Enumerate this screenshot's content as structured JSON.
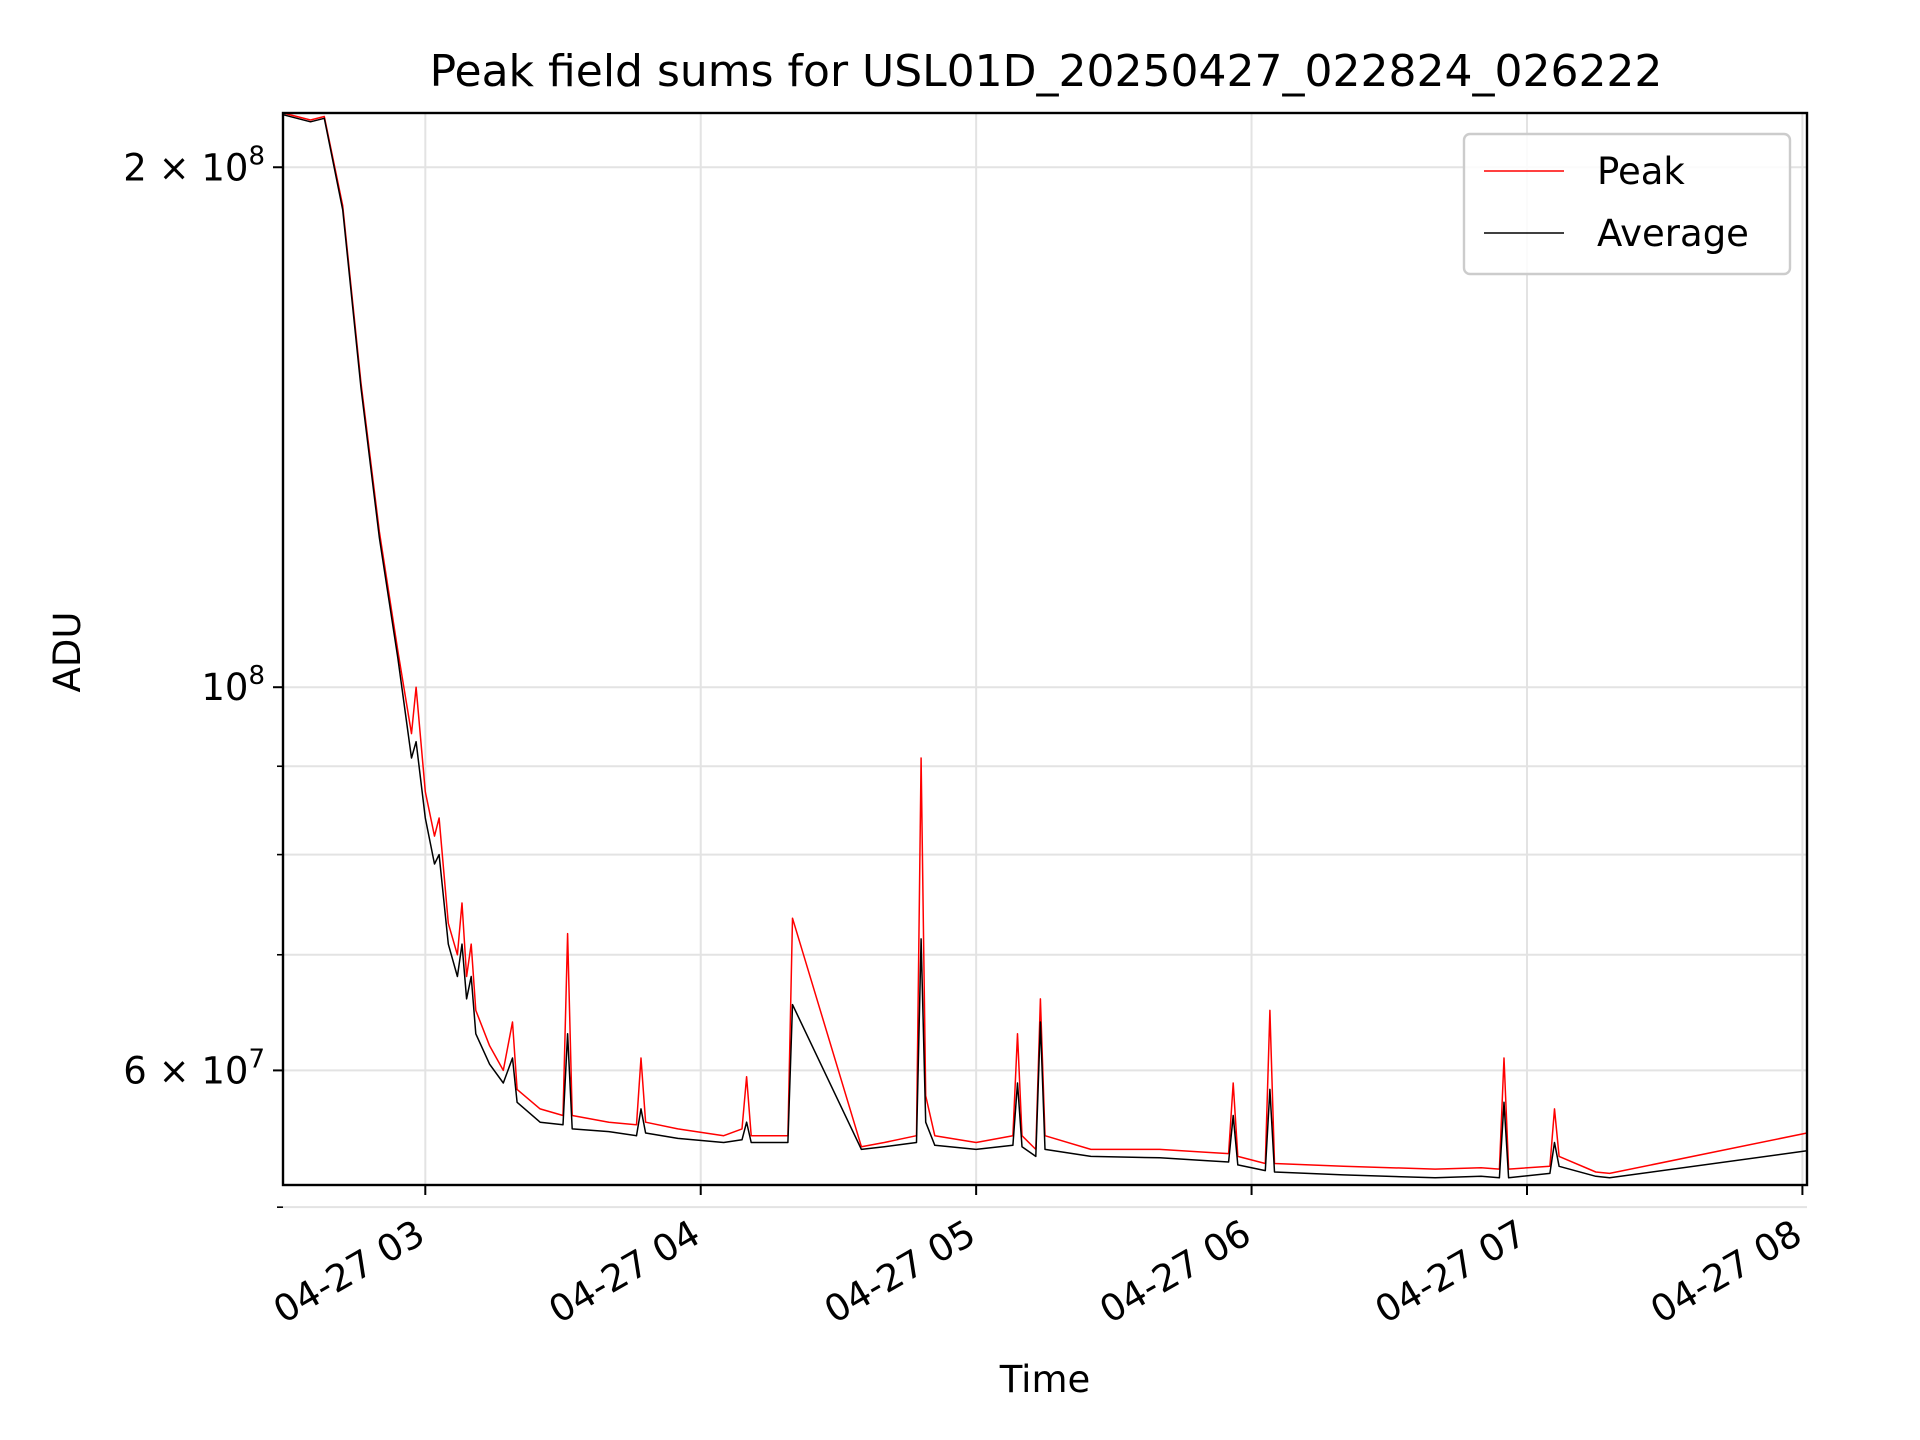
{
  "chart_data": {
    "type": "line",
    "title": "Peak field sums for USL01D_20250427_022824_026222",
    "xlabel": "Time",
    "ylabel": "ADU",
    "yscale": "log",
    "xlim": [
      "2025-04-27 02:29",
      "2025-04-27 08:01"
    ],
    "ylim": [
      51500000,
      215000000
    ],
    "grid": true,
    "legend_position": "top-right",
    "x_ticks": [
      "04-27 03",
      "04-27 04",
      "04-27 05",
      "04-27 06",
      "04-27 07",
      "04-27 08"
    ],
    "x_tick_times": [
      "2025-04-27 03:00",
      "2025-04-27 04:00",
      "2025-04-27 05:00",
      "2025-04-27 06:00",
      "2025-04-27 07:00",
      "2025-04-27 08:00"
    ],
    "y_ticks": [
      {
        "value": 60000000,
        "mantissa": "6",
        "exponent": "7"
      },
      {
        "value": 100000000,
        "mantissa": "",
        "exponent": "8"
      },
      {
        "value": 200000000,
        "mantissa": "2",
        "exponent": "8"
      }
    ],
    "y_minor_ticks": [
      50000000,
      70000000,
      80000000,
      90000000
    ],
    "series": [
      {
        "name": "Peak",
        "color": "#ff0000",
        "points": [
          [
            "2025-04-27 02:29",
            215000000
          ],
          [
            "2025-04-27 02:35",
            213000000
          ],
          [
            "2025-04-27 02:38",
            214000000
          ],
          [
            "2025-04-27 02:42",
            190000000
          ],
          [
            "2025-04-27 02:46",
            150000000
          ],
          [
            "2025-04-27 02:50",
            123000000
          ],
          [
            "2025-04-27 02:54",
            105000000
          ],
          [
            "2025-04-27 02:57",
            94000000
          ],
          [
            "2025-04-27 02:58",
            100000000
          ],
          [
            "2025-04-27 03:00",
            87000000
          ],
          [
            "2025-04-27 03:02",
            82000000
          ],
          [
            "2025-04-27 03:03",
            84000000
          ],
          [
            "2025-04-27 03:05",
            73000000
          ],
          [
            "2025-04-27 03:07",
            70000000
          ],
          [
            "2025-04-27 03:08",
            75000000
          ],
          [
            "2025-04-27 03:09",
            68000000
          ],
          [
            "2025-04-27 03:10",
            71000000
          ],
          [
            "2025-04-27 03:11",
            65000000
          ],
          [
            "2025-04-27 03:14",
            62000000
          ],
          [
            "2025-04-27 03:17",
            60000000
          ],
          [
            "2025-04-27 03:19",
            64000000
          ],
          [
            "2025-04-27 03:20",
            58500000
          ],
          [
            "2025-04-27 03:25",
            57000000
          ],
          [
            "2025-04-27 03:30",
            56500000
          ],
          [
            "2025-04-27 03:31",
            72000000
          ],
          [
            "2025-04-27 03:32",
            56500000
          ],
          [
            "2025-04-27 03:40",
            56000000
          ],
          [
            "2025-04-27 03:46",
            55800000
          ],
          [
            "2025-04-27 03:47",
            61000000
          ],
          [
            "2025-04-27 03:48",
            56000000
          ],
          [
            "2025-04-27 03:55",
            55500000
          ],
          [
            "2025-04-27 04:05",
            55000000
          ],
          [
            "2025-04-27 04:09",
            55500000
          ],
          [
            "2025-04-27 04:10",
            59500000
          ],
          [
            "2025-04-27 04:11",
            55000000
          ],
          [
            "2025-04-27 04:19",
            55000000
          ],
          [
            "2025-04-27 04:20",
            73500000
          ],
          [
            "2025-04-27 04:35",
            54200000
          ],
          [
            "2025-04-27 04:40",
            54500000
          ],
          [
            "2025-04-27 04:47",
            55000000
          ],
          [
            "2025-04-27 04:48",
            91000000
          ],
          [
            "2025-04-27 04:49",
            58000000
          ],
          [
            "2025-04-27 04:51",
            55000000
          ],
          [
            "2025-04-27 05:00",
            54500000
          ],
          [
            "2025-04-27 05:08",
            55000000
          ],
          [
            "2025-04-27 05:09",
            63000000
          ],
          [
            "2025-04-27 05:10",
            55000000
          ],
          [
            "2025-04-27 05:13",
            54000000
          ],
          [
            "2025-04-27 05:14",
            66000000
          ],
          [
            "2025-04-27 05:15",
            55000000
          ],
          [
            "2025-04-27 05:25",
            54000000
          ],
          [
            "2025-04-27 05:40",
            54000000
          ],
          [
            "2025-04-27 05:50",
            53800000
          ],
          [
            "2025-04-27 05:55",
            53700000
          ],
          [
            "2025-04-27 05:56",
            59000000
          ],
          [
            "2025-04-27 05:57",
            53500000
          ],
          [
            "2025-04-27 06:03",
            53000000
          ],
          [
            "2025-04-27 06:04",
            65000000
          ],
          [
            "2025-04-27 06:05",
            53000000
          ],
          [
            "2025-04-27 06:20",
            52800000
          ],
          [
            "2025-04-27 06:40",
            52600000
          ],
          [
            "2025-04-27 06:50",
            52700000
          ],
          [
            "2025-04-27 06:54",
            52600000
          ],
          [
            "2025-04-27 06:55",
            61000000
          ],
          [
            "2025-04-27 06:56",
            52600000
          ],
          [
            "2025-04-27 07:05",
            52800000
          ],
          [
            "2025-04-27 07:06",
            57000000
          ],
          [
            "2025-04-27 07:07",
            53500000
          ],
          [
            "2025-04-27 07:15",
            52400000
          ],
          [
            "2025-04-27 07:18",
            52300000
          ],
          [
            "2025-04-27 08:01",
            55200000
          ]
        ]
      },
      {
        "name": "Average",
        "color": "#000000",
        "points": [
          [
            "2025-04-27 02:29",
            214500000
          ],
          [
            "2025-04-27 02:35",
            212500000
          ],
          [
            "2025-04-27 02:38",
            213500000
          ],
          [
            "2025-04-27 02:42",
            189000000
          ],
          [
            "2025-04-27 02:46",
            149000000
          ],
          [
            "2025-04-27 02:50",
            122000000
          ],
          [
            "2025-04-27 02:54",
            104000000
          ],
          [
            "2025-04-27 02:57",
            91000000
          ],
          [
            "2025-04-27 02:58",
            93000000
          ],
          [
            "2025-04-27 03:00",
            84000000
          ],
          [
            "2025-04-27 03:02",
            79000000
          ],
          [
            "2025-04-27 03:03",
            80000000
          ],
          [
            "2025-04-27 03:05",
            71000000
          ],
          [
            "2025-04-27 03:07",
            68000000
          ],
          [
            "2025-04-27 03:08",
            71000000
          ],
          [
            "2025-04-27 03:09",
            66000000
          ],
          [
            "2025-04-27 03:10",
            68000000
          ],
          [
            "2025-04-27 03:11",
            63000000
          ],
          [
            "2025-04-27 03:14",
            60500000
          ],
          [
            "2025-04-27 03:17",
            59000000
          ],
          [
            "2025-04-27 03:19",
            61000000
          ],
          [
            "2025-04-27 03:20",
            57500000
          ],
          [
            "2025-04-27 03:25",
            56000000
          ],
          [
            "2025-04-27 03:30",
            55800000
          ],
          [
            "2025-04-27 03:31",
            63000000
          ],
          [
            "2025-04-27 03:32",
            55500000
          ],
          [
            "2025-04-27 03:40",
            55300000
          ],
          [
            "2025-04-27 03:46",
            55000000
          ],
          [
            "2025-04-27 03:47",
            57000000
          ],
          [
            "2025-04-27 03:48",
            55200000
          ],
          [
            "2025-04-27 03:55",
            54800000
          ],
          [
            "2025-04-27 04:05",
            54500000
          ],
          [
            "2025-04-27 04:09",
            54700000
          ],
          [
            "2025-04-27 04:10",
            56000000
          ],
          [
            "2025-04-27 04:11",
            54500000
          ],
          [
            "2025-04-27 04:19",
            54500000
          ],
          [
            "2025-04-27 04:20",
            65500000
          ],
          [
            "2025-04-27 04:35",
            54000000
          ],
          [
            "2025-04-27 04:40",
            54200000
          ],
          [
            "2025-04-27 04:47",
            54500000
          ],
          [
            "2025-04-27 04:48",
            71500000
          ],
          [
            "2025-04-27 04:49",
            56000000
          ],
          [
            "2025-04-27 04:51",
            54300000
          ],
          [
            "2025-04-27 05:00",
            54000000
          ],
          [
            "2025-04-27 05:08",
            54300000
          ],
          [
            "2025-04-27 05:09",
            59000000
          ],
          [
            "2025-04-27 05:10",
            54200000
          ],
          [
            "2025-04-27 05:13",
            53500000
          ],
          [
            "2025-04-27 05:14",
            64000000
          ],
          [
            "2025-04-27 05:15",
            54000000
          ],
          [
            "2025-04-27 05:25",
            53500000
          ],
          [
            "2025-04-27 05:40",
            53400000
          ],
          [
            "2025-04-27 05:50",
            53200000
          ],
          [
            "2025-04-27 05:55",
            53100000
          ],
          [
            "2025-04-27 05:56",
            56500000
          ],
          [
            "2025-04-27 05:57",
            52900000
          ],
          [
            "2025-04-27 06:03",
            52500000
          ],
          [
            "2025-04-27 06:04",
            58500000
          ],
          [
            "2025-04-27 06:05",
            52400000
          ],
          [
            "2025-04-27 06:20",
            52200000
          ],
          [
            "2025-04-27 06:40",
            52000000
          ],
          [
            "2025-04-27 06:50",
            52100000
          ],
          [
            "2025-04-27 06:54",
            52000000
          ],
          [
            "2025-04-27 06:55",
            57500000
          ],
          [
            "2025-04-27 06:56",
            52000000
          ],
          [
            "2025-04-27 07:05",
            52300000
          ],
          [
            "2025-04-27 07:06",
            54500000
          ],
          [
            "2025-04-27 07:07",
            52800000
          ],
          [
            "2025-04-27 07:15",
            52100000
          ],
          [
            "2025-04-27 07:18",
            52000000
          ],
          [
            "2025-04-27 08:01",
            53900000
          ]
        ]
      }
    ]
  }
}
